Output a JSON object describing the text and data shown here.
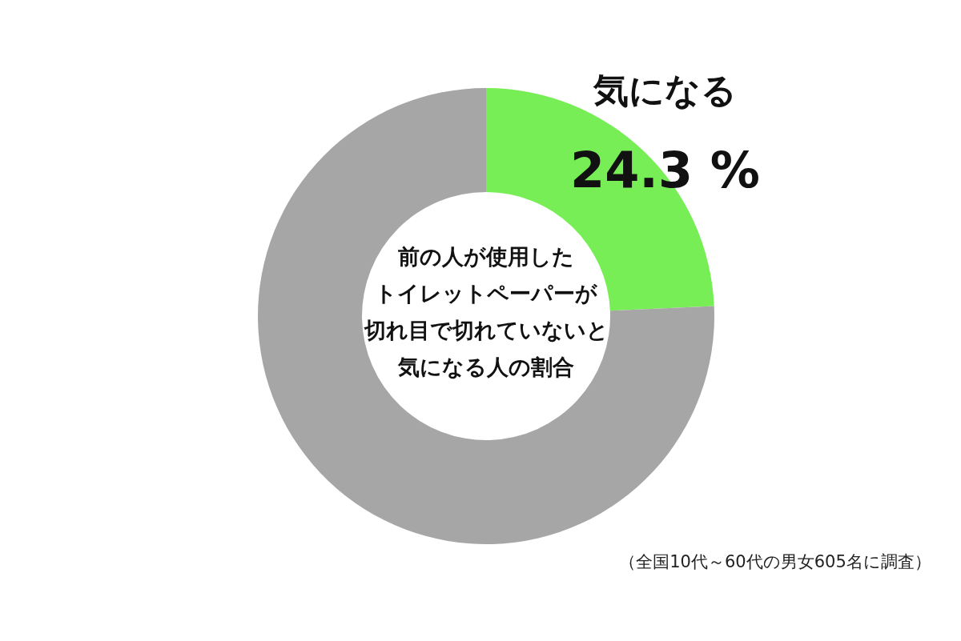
{
  "chart_data": {
    "type": "donut",
    "title": "前の人が使用したトイレットペーパーが切れ目で切れていないと気になる人の割合",
    "categories": [
      "気になる",
      null
    ],
    "values": [
      24.3,
      75.7
    ],
    "colors": [
      "#77ee55",
      "#a6a6a6"
    ],
    "value_labels": [
      "24.3 %",
      null
    ],
    "annotations": [
      "（全国10代～60代の男女605名に調査）"
    ]
  }
}
